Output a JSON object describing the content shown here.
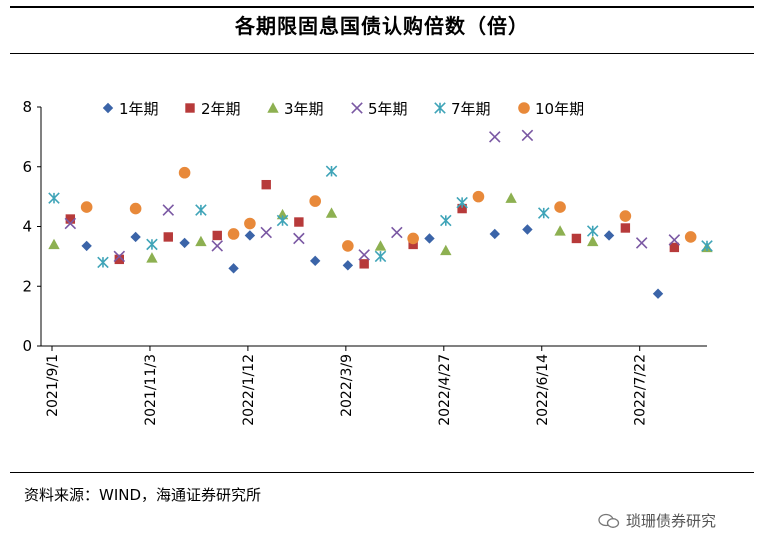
{
  "header": {
    "title": "各期限固息国债认购倍数（倍）"
  },
  "footer": {
    "source": "资料来源：WIND，海通证券研究所",
    "watermark": "琐珊债券研究"
  },
  "chart_data": {
    "type": "scatter",
    "title": "各期限固息国债认购倍数（倍）",
    "ylim": [
      0,
      8
    ],
    "yticks": [
      0,
      2,
      4,
      6,
      8
    ],
    "xlabel": "",
    "ylabel": "",
    "legend_position": "top",
    "x_tick_labels": [
      "2021/9/1",
      "2021/11/3",
      "2022/1/12",
      "2022/3/9",
      "2022/4/27",
      "2022/6/14",
      "2022/7/22"
    ],
    "x_tick_index": [
      0,
      6,
      12,
      18,
      24,
      30,
      36
    ],
    "n_positions": 41,
    "series": [
      {
        "name": "1年期",
        "marker": "diamond",
        "color": "#3B64A8",
        "points": [
          [
            2,
            3.35
          ],
          [
            5,
            3.65
          ],
          [
            8,
            3.45
          ],
          [
            11,
            2.6
          ],
          [
            12,
            3.7
          ],
          [
            16,
            2.85
          ],
          [
            18,
            2.7
          ],
          [
            23,
            3.6
          ],
          [
            27,
            3.75
          ],
          [
            29,
            3.9
          ],
          [
            34,
            3.7
          ],
          [
            37,
            1.75
          ]
        ]
      },
      {
        "name": "2年期",
        "marker": "square",
        "color": "#B73A3A",
        "points": [
          [
            1,
            4.25
          ],
          [
            4,
            2.9
          ],
          [
            7,
            3.65
          ],
          [
            10,
            3.7
          ],
          [
            13,
            5.4
          ],
          [
            15,
            4.15
          ],
          [
            19,
            2.75
          ],
          [
            22,
            3.4
          ],
          [
            25,
            4.6
          ],
          [
            32,
            3.6
          ],
          [
            35,
            3.95
          ],
          [
            38,
            3.3
          ]
        ]
      },
      {
        "name": "3年期",
        "marker": "triangle",
        "color": "#8DB051",
        "points": [
          [
            0,
            3.4
          ],
          [
            6,
            2.95
          ],
          [
            9,
            3.5
          ],
          [
            14,
            4.4
          ],
          [
            17,
            4.45
          ],
          [
            20,
            3.35
          ],
          [
            24,
            3.2
          ],
          [
            28,
            4.95
          ],
          [
            31,
            3.85
          ],
          [
            33,
            3.5
          ],
          [
            40,
            3.3
          ]
        ]
      },
      {
        "name": "5年期",
        "marker": "x",
        "color": "#7A58A3",
        "points": [
          [
            1,
            4.1
          ],
          [
            4,
            3.0
          ],
          [
            7,
            4.55
          ],
          [
            10,
            3.35
          ],
          [
            13,
            3.8
          ],
          [
            15,
            3.6
          ],
          [
            19,
            3.05
          ],
          [
            21,
            3.8
          ],
          [
            27,
            7.0
          ],
          [
            29,
            7.05
          ],
          [
            36,
            3.45
          ],
          [
            38,
            3.55
          ]
        ]
      },
      {
        "name": "7年期",
        "marker": "star",
        "color": "#3FA4B8",
        "points": [
          [
            0,
            4.95
          ],
          [
            3,
            2.8
          ],
          [
            6,
            3.4
          ],
          [
            9,
            4.55
          ],
          [
            14,
            4.2
          ],
          [
            17,
            5.85
          ],
          [
            20,
            3.0
          ],
          [
            24,
            4.2
          ],
          [
            25,
            4.8
          ],
          [
            30,
            4.45
          ],
          [
            33,
            3.85
          ],
          [
            40,
            3.35
          ]
        ]
      },
      {
        "name": "10年期",
        "marker": "circle",
        "color": "#E8893A",
        "points": [
          [
            2,
            4.65
          ],
          [
            5,
            4.6
          ],
          [
            8,
            5.8
          ],
          [
            11,
            3.75
          ],
          [
            12,
            4.1
          ],
          [
            16,
            4.85
          ],
          [
            18,
            3.35
          ],
          [
            22,
            3.6
          ],
          [
            26,
            5.0
          ],
          [
            31,
            4.65
          ],
          [
            35,
            4.35
          ],
          [
            39,
            3.65
          ]
        ]
      }
    ]
  }
}
